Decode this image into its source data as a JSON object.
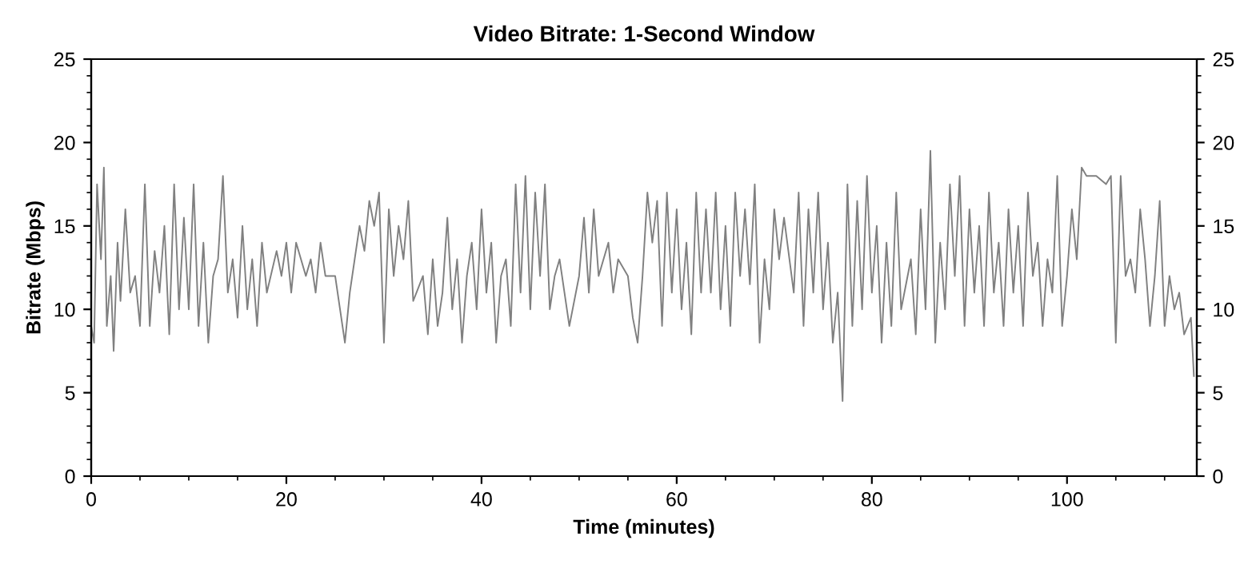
{
  "chart_data": {
    "type": "line",
    "title": "Video Bitrate: 1-Second Window",
    "xlabel": "Time (minutes)",
    "ylabel": "Bitrate (Mbps)",
    "xlim": [
      0,
      113.3
    ],
    "xticks": [
      0,
      20,
      40,
      60,
      80,
      100
    ],
    "ylim": [
      0,
      25
    ],
    "yticks": [
      0,
      5,
      10,
      15,
      20,
      25
    ],
    "y2lim": [
      0,
      25
    ],
    "y2ticks": [
      0,
      5,
      10,
      15,
      20,
      25
    ],
    "grid": false,
    "legend": false,
    "marker": "none",
    "line_style": "solid",
    "series": [
      {
        "color": "#808080",
        "x": [
          0,
          0.3,
          0.6,
          1,
          1.3,
          1.6,
          2,
          2.3,
          2.7,
          3,
          3.5,
          4,
          4.5,
          5,
          5.5,
          6,
          6.5,
          7,
          7.5,
          8,
          8.5,
          9,
          9.5,
          10,
          10.5,
          11,
          11.5,
          12,
          12.5,
          13,
          13.5,
          14,
          14.5,
          15,
          15.5,
          16,
          16.5,
          17,
          17.5,
          18,
          19,
          19.5,
          20,
          20.5,
          21,
          22,
          22.5,
          23,
          23.5,
          24,
          25,
          25.5,
          26,
          26.5,
          27,
          27.5,
          28,
          28.5,
          29,
          29.5,
          30,
          30.5,
          31,
          31.5,
          32,
          32.5,
          33,
          34,
          34.5,
          35,
          35.5,
          36,
          36.5,
          37,
          37.5,
          38,
          38.5,
          39,
          39.5,
          40,
          40.5,
          41,
          41.5,
          42,
          42.5,
          43,
          43.5,
          44,
          44.5,
          45,
          45.5,
          46,
          46.5,
          47,
          47.5,
          48,
          48.5,
          49,
          50,
          50.5,
          51,
          51.5,
          52,
          53,
          53.5,
          54,
          55,
          55.5,
          56,
          56.5,
          57,
          57.5,
          58,
          58.5,
          59,
          59.5,
          60,
          60.5,
          61,
          61.5,
          62,
          62.5,
          63,
          63.5,
          64,
          64.5,
          65,
          65.5,
          66,
          66.5,
          67,
          67.5,
          68,
          68.5,
          69,
          69.5,
          70,
          70.5,
          71,
          72,
          72.5,
          73,
          73.5,
          74,
          74.5,
          75,
          75.5,
          76,
          76.5,
          77,
          77.5,
          78,
          78.5,
          79,
          79.5,
          80,
          80.5,
          81,
          81.5,
          82,
          82.5,
          83,
          84,
          84.5,
          85,
          85.5,
          86,
          86.5,
          87,
          87.5,
          88,
          88.5,
          89,
          89.5,
          90,
          90.5,
          91,
          91.5,
          92,
          92.5,
          93,
          93.5,
          94,
          94.5,
          95,
          95.5,
          96,
          96.5,
          97,
          97.5,
          98,
          98.5,
          99,
          99.5,
          100,
          100.5,
          101,
          101.5,
          102,
          103,
          104,
          104.5,
          105,
          105.5,
          106,
          106.5,
          107,
          107.5,
          108,
          108.5,
          109,
          109.5,
          110,
          110.5,
          111,
          111.5,
          112,
          112.7,
          113
        ],
        "values": [
          9,
          8,
          17.5,
          13,
          18.5,
          9,
          12,
          7.5,
          14,
          10.5,
          16,
          11,
          12,
          9,
          17.5,
          9,
          13.5,
          11,
          15,
          8.5,
          17.5,
          10,
          15.5,
          10,
          17.5,
          9,
          14,
          8,
          12,
          13,
          18,
          11,
          13,
          9.5,
          15,
          10,
          13,
          9,
          14,
          11,
          13.5,
          12,
          14,
          11,
          14,
          12,
          13,
          11,
          14,
          12,
          12,
          10,
          8,
          11,
          13,
          15,
          13.5,
          16.5,
          15,
          17,
          8,
          16,
          12,
          15,
          13,
          16.5,
          10.5,
          12,
          8.5,
          13,
          9,
          11,
          15.5,
          10,
          13,
          8,
          12,
          14,
          10,
          16,
          11,
          14,
          8,
          12,
          13,
          9,
          17.5,
          11,
          18,
          10,
          17,
          12,
          17.5,
          10,
          12,
          13,
          11,
          9,
          12,
          15.5,
          11,
          16,
          12,
          14,
          11,
          13,
          12,
          9.5,
          8,
          12,
          17,
          14,
          16.5,
          9,
          17,
          11,
          16,
          10,
          14,
          8.5,
          17,
          11,
          16,
          11,
          17,
          10,
          15,
          9,
          17,
          12,
          16,
          11.5,
          17.5,
          8,
          13,
          10,
          16,
          13,
          15.5,
          11,
          17,
          9,
          16,
          11,
          17,
          10,
          14,
          8,
          11,
          4.5,
          17.5,
          9,
          16.5,
          10,
          18,
          11,
          15,
          8,
          14,
          9,
          17,
          10,
          13,
          8.5,
          16,
          10,
          19.5,
          8,
          14,
          10,
          17.5,
          12,
          18,
          9,
          16,
          11,
          15,
          9,
          17,
          11,
          14,
          9,
          16,
          11,
          15,
          9,
          17,
          12,
          14,
          9,
          13,
          11,
          18,
          9,
          12,
          16,
          13,
          18.5,
          18,
          18,
          17.5,
          18,
          8,
          18,
          12,
          13,
          11,
          16,
          13,
          9,
          12,
          16.5,
          9,
          12,
          10,
          11,
          8.5,
          9.5,
          6
        ]
      }
    ]
  }
}
